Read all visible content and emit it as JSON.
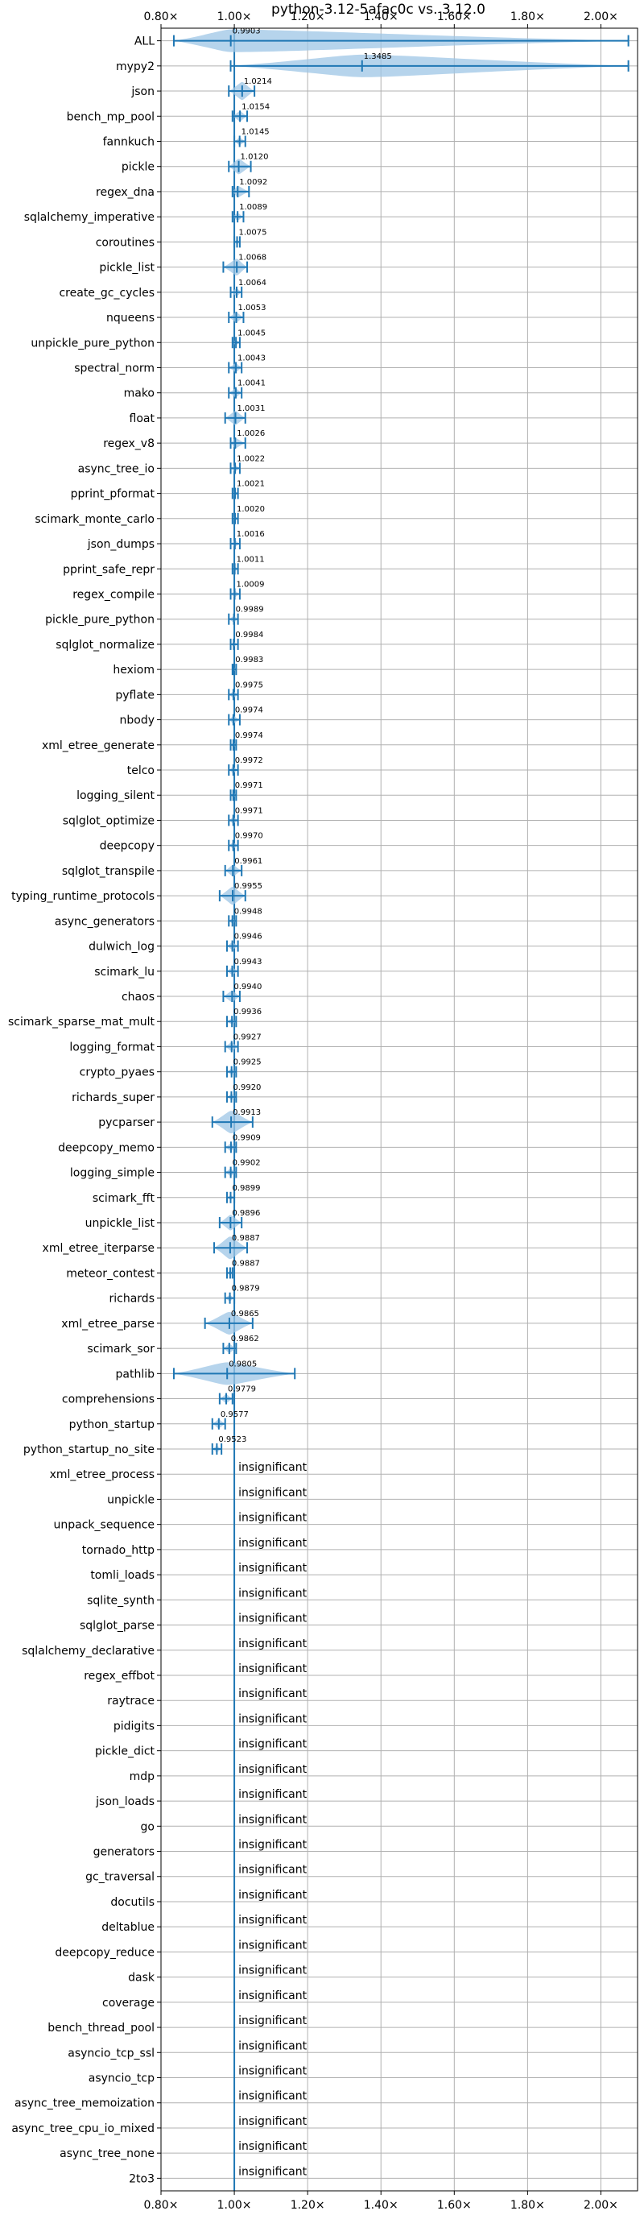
{
  "chart_data": {
    "type": "violin",
    "title": "python-3.12-5afac0c vs. 3.12.0",
    "xlim": [
      0.8,
      2.1
    ],
    "xticks": [
      0.8,
      1.0,
      1.2,
      1.4,
      1.6,
      1.8,
      2.0
    ],
    "xtick_labels": [
      "0.80×",
      "1.00×",
      "1.20×",
      "1.40×",
      "1.60×",
      "1.80×",
      "2.00×"
    ],
    "reference_line": 1.0,
    "grid": true,
    "insignificant_label": "insignificant",
    "benchmarks": [
      {
        "name": "ALL",
        "mean": 0.9903,
        "label": "0.9903",
        "min": 0.835,
        "max": 2.075
      },
      {
        "name": "mypy2",
        "mean": 1.3485,
        "label": "1.3485",
        "min": 0.99,
        "max": 2.075
      },
      {
        "name": "json",
        "mean": 1.0214,
        "label": "1.0214",
        "min": 0.985,
        "max": 1.055
      },
      {
        "name": "bench_mp_pool",
        "mean": 1.0154,
        "label": "1.0154",
        "min": 0.995,
        "max": 1.035
      },
      {
        "name": "fannkuch",
        "mean": 1.0145,
        "label": "1.0145",
        "min": 1.0,
        "max": 1.03
      },
      {
        "name": "pickle",
        "mean": 1.012,
        "label": "1.0120",
        "min": 0.985,
        "max": 1.045
      },
      {
        "name": "regex_dna",
        "mean": 1.0092,
        "label": "1.0092",
        "min": 0.995,
        "max": 1.04
      },
      {
        "name": "sqlalchemy_imperative",
        "mean": 1.0089,
        "label": "1.0089",
        "min": 0.995,
        "max": 1.025
      },
      {
        "name": "coroutines",
        "mean": 1.0075,
        "label": "1.0075",
        "min": 1.0,
        "max": 1.015
      },
      {
        "name": "pickle_list",
        "mean": 1.0068,
        "label": "1.0068",
        "min": 0.97,
        "max": 1.035
      },
      {
        "name": "create_gc_cycles",
        "mean": 1.0064,
        "label": "1.0064",
        "min": 0.99,
        "max": 1.02
      },
      {
        "name": "nqueens",
        "mean": 1.0053,
        "label": "1.0053",
        "min": 0.985,
        "max": 1.025
      },
      {
        "name": "unpickle_pure_python",
        "mean": 1.0045,
        "label": "1.0045",
        "min": 0.995,
        "max": 1.015
      },
      {
        "name": "spectral_norm",
        "mean": 1.0043,
        "label": "1.0043",
        "min": 0.985,
        "max": 1.02
      },
      {
        "name": "mako",
        "mean": 1.0041,
        "label": "1.0041",
        "min": 0.985,
        "max": 1.02
      },
      {
        "name": "float",
        "mean": 1.0031,
        "label": "1.0031",
        "min": 0.975,
        "max": 1.03
      },
      {
        "name": "regex_v8",
        "mean": 1.0026,
        "label": "1.0026",
        "min": 0.99,
        "max": 1.03
      },
      {
        "name": "async_tree_io",
        "mean": 1.0022,
        "label": "1.0022",
        "min": 0.99,
        "max": 1.015
      },
      {
        "name": "pprint_pformat",
        "mean": 1.0021,
        "label": "1.0021",
        "min": 0.995,
        "max": 1.01
      },
      {
        "name": "scimark_monte_carlo",
        "mean": 1.002,
        "label": "1.0020",
        "min": 0.995,
        "max": 1.01
      },
      {
        "name": "json_dumps",
        "mean": 1.0016,
        "label": "1.0016",
        "min": 0.99,
        "max": 1.015
      },
      {
        "name": "pprint_safe_repr",
        "mean": 1.0011,
        "label": "1.0011",
        "min": 0.995,
        "max": 1.01
      },
      {
        "name": "regex_compile",
        "mean": 1.0009,
        "label": "1.0009",
        "min": 0.99,
        "max": 1.015
      },
      {
        "name": "pickle_pure_python",
        "mean": 0.9989,
        "label": "0.9989",
        "min": 0.985,
        "max": 1.01
      },
      {
        "name": "sqlglot_normalize",
        "mean": 0.9984,
        "label": "0.9984",
        "min": 0.99,
        "max": 1.01
      },
      {
        "name": "hexiom",
        "mean": 0.9983,
        "label": "0.9983",
        "min": 0.995,
        "max": 1.005
      },
      {
        "name": "pyflate",
        "mean": 0.9975,
        "label": "0.9975",
        "min": 0.985,
        "max": 1.01
      },
      {
        "name": "nbody",
        "mean": 0.9974,
        "label": "0.9974",
        "min": 0.985,
        "max": 1.015
      },
      {
        "name": "xml_etree_generate",
        "mean": 0.9974,
        "label": "0.9974",
        "min": 0.99,
        "max": 1.005
      },
      {
        "name": "telco",
        "mean": 0.9972,
        "label": "0.9972",
        "min": 0.985,
        "max": 1.01
      },
      {
        "name": "logging_silent",
        "mean": 0.9971,
        "label": "0.9971",
        "min": 0.99,
        "max": 1.005
      },
      {
        "name": "sqlglot_optimize",
        "mean": 0.9971,
        "label": "0.9971",
        "min": 0.985,
        "max": 1.01
      },
      {
        "name": "deepcopy",
        "mean": 0.997,
        "label": "0.9970",
        "min": 0.985,
        "max": 1.01
      },
      {
        "name": "sqlglot_transpile",
        "mean": 0.9961,
        "label": "0.9961",
        "min": 0.975,
        "max": 1.02
      },
      {
        "name": "typing_runtime_protocols",
        "mean": 0.9955,
        "label": "0.9955",
        "min": 0.96,
        "max": 1.03
      },
      {
        "name": "async_generators",
        "mean": 0.9948,
        "label": "0.9948",
        "min": 0.985,
        "max": 1.005
      },
      {
        "name": "dulwich_log",
        "mean": 0.9946,
        "label": "0.9946",
        "min": 0.98,
        "max": 1.01
      },
      {
        "name": "scimark_lu",
        "mean": 0.9943,
        "label": "0.9943",
        "min": 0.98,
        "max": 1.01
      },
      {
        "name": "chaos",
        "mean": 0.994,
        "label": "0.9940",
        "min": 0.97,
        "max": 1.015
      },
      {
        "name": "scimark_sparse_mat_mult",
        "mean": 0.9936,
        "label": "0.9936",
        "min": 0.98,
        "max": 1.005
      },
      {
        "name": "logging_format",
        "mean": 0.9927,
        "label": "0.9927",
        "min": 0.975,
        "max": 1.01
      },
      {
        "name": "crypto_pyaes",
        "mean": 0.9925,
        "label": "0.9925",
        "min": 0.98,
        "max": 1.005
      },
      {
        "name": "richards_super",
        "mean": 0.992,
        "label": "0.9920",
        "min": 0.98,
        "max": 1.005
      },
      {
        "name": "pycparser",
        "mean": 0.9913,
        "label": "0.9913",
        "min": 0.94,
        "max": 1.05
      },
      {
        "name": "deepcopy_memo",
        "mean": 0.9909,
        "label": "0.9909",
        "min": 0.975,
        "max": 1.005
      },
      {
        "name": "logging_simple",
        "mean": 0.9902,
        "label": "0.9902",
        "min": 0.975,
        "max": 1.005
      },
      {
        "name": "scimark_fft",
        "mean": 0.9899,
        "label": "0.9899",
        "min": 0.98,
        "max": 1.0
      },
      {
        "name": "unpickle_list",
        "mean": 0.9896,
        "label": "0.9896",
        "min": 0.96,
        "max": 1.02
      },
      {
        "name": "xml_etree_iterparse",
        "mean": 0.9887,
        "label": "0.9887",
        "min": 0.945,
        "max": 1.035
      },
      {
        "name": "meteor_contest",
        "mean": 0.9887,
        "label": "0.9887",
        "min": 0.98,
        "max": 0.995
      },
      {
        "name": "richards",
        "mean": 0.9879,
        "label": "0.9879",
        "min": 0.975,
        "max": 1.0
      },
      {
        "name": "xml_etree_parse",
        "mean": 0.9865,
        "label": "0.9865",
        "min": 0.92,
        "max": 1.05
      },
      {
        "name": "scimark_sor",
        "mean": 0.9862,
        "label": "0.9862",
        "min": 0.97,
        "max": 1.005
      },
      {
        "name": "pathlib",
        "mean": 0.9805,
        "label": "0.9805",
        "min": 0.835,
        "max": 1.165
      },
      {
        "name": "comprehensions",
        "mean": 0.9779,
        "label": "0.9779",
        "min": 0.96,
        "max": 0.995
      },
      {
        "name": "python_startup",
        "mean": 0.9577,
        "label": "0.9577",
        "min": 0.94,
        "max": 0.975
      },
      {
        "name": "python_startup_no_site",
        "mean": 0.9523,
        "label": "0.9523",
        "min": 0.94,
        "max": 0.965
      },
      {
        "name": "xml_etree_process",
        "insignificant": true
      },
      {
        "name": "unpickle",
        "insignificant": true
      },
      {
        "name": "unpack_sequence",
        "insignificant": true
      },
      {
        "name": "tornado_http",
        "insignificant": true
      },
      {
        "name": "tomli_loads",
        "insignificant": true
      },
      {
        "name": "sqlite_synth",
        "insignificant": true
      },
      {
        "name": "sqlglot_parse",
        "insignificant": true
      },
      {
        "name": "sqlalchemy_declarative",
        "insignificant": true
      },
      {
        "name": "regex_effbot",
        "insignificant": true
      },
      {
        "name": "raytrace",
        "insignificant": true
      },
      {
        "name": "pidigits",
        "insignificant": true
      },
      {
        "name": "pickle_dict",
        "insignificant": true
      },
      {
        "name": "mdp",
        "insignificant": true
      },
      {
        "name": "json_loads",
        "insignificant": true
      },
      {
        "name": "go",
        "insignificant": true
      },
      {
        "name": "generators",
        "insignificant": true
      },
      {
        "name": "gc_traversal",
        "insignificant": true
      },
      {
        "name": "docutils",
        "insignificant": true
      },
      {
        "name": "deltablue",
        "insignificant": true
      },
      {
        "name": "deepcopy_reduce",
        "insignificant": true
      },
      {
        "name": "dask",
        "insignificant": true
      },
      {
        "name": "coverage",
        "insignificant": true
      },
      {
        "name": "bench_thread_pool",
        "insignificant": true
      },
      {
        "name": "asyncio_tcp_ssl",
        "insignificant": true
      },
      {
        "name": "asyncio_tcp",
        "insignificant": true
      },
      {
        "name": "async_tree_memoization",
        "insignificant": true
      },
      {
        "name": "async_tree_cpu_io_mixed",
        "insignificant": true
      },
      {
        "name": "async_tree_none",
        "insignificant": true
      },
      {
        "name": "2to3",
        "insignificant": true
      }
    ]
  },
  "colors": {
    "accent": "#1f77b4",
    "violin_fill": "#9ec5e5",
    "grid": "#b0b0b0",
    "axis": "#000000"
  }
}
